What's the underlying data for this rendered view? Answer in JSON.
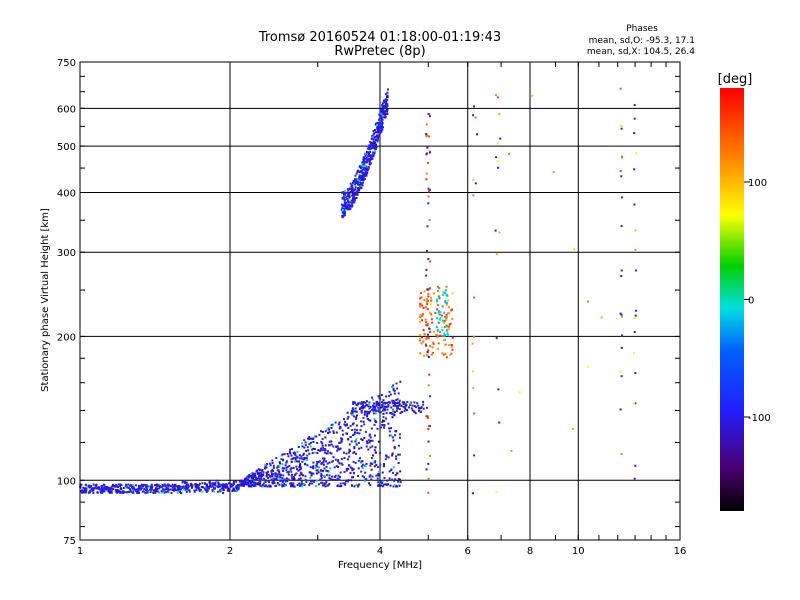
{
  "chart_data": {
    "type": "scatter",
    "title": "Tromsø 20160524 01:18:00-01:19:43",
    "subtitle": "RwPretec (8p)",
    "xlabel": "Frequency [MHz]",
    "ylabel": "Stationary phase Virtual Height [km]",
    "x_scale": "log",
    "y_scale": "log",
    "xlim": [
      1,
      16
    ],
    "ylim": [
      75,
      750
    ],
    "x_ticks": [
      1,
      2,
      4,
      6,
      8,
      10,
      16
    ],
    "y_ticks": [
      75,
      100,
      200,
      300,
      400,
      500,
      600,
      750
    ],
    "grid": true,
    "stats": {
      "heading": "Phases",
      "line1": "mean, sd,O: -95.3, 17.1",
      "line2": "mean, sd,X: 104.5, 26.4"
    },
    "colorbar": {
      "label": "[deg]",
      "range": [
        -180,
        180
      ],
      "ticks": [
        -100,
        0,
        100
      ],
      "colormap": "rainbow: black-purple-blue-cyan-green-yellow-orange-red"
    },
    "point_groups": [
      {
        "name": "E-region trace",
        "x_range": [
          1.0,
          2.1
        ],
        "y_range": [
          94,
          99
        ],
        "phase": -100,
        "density": "dense"
      },
      {
        "name": "Lower F trace",
        "x_range": [
          2.1,
          4.4
        ],
        "y_range": [
          98,
          150
        ],
        "phase": -100,
        "density": "dense"
      },
      {
        "name": "F-region O trace",
        "x_range": [
          3.3,
          4.2
        ],
        "y_range": [
          380,
          660
        ],
        "phase": -100,
        "density": "dense"
      },
      {
        "name": "Scattered echoes near 5 MHz",
        "x_range": [
          4.8,
          5.6
        ],
        "y_range": [
          180,
          250
        ],
        "phase": 130,
        "density": "sparse"
      },
      {
        "name": "Scattered echoes 6-14 MHz",
        "x_range": [
          6,
          14
        ],
        "y_range": [
          90,
          660
        ],
        "phase": 60,
        "density": "sparse"
      }
    ]
  }
}
